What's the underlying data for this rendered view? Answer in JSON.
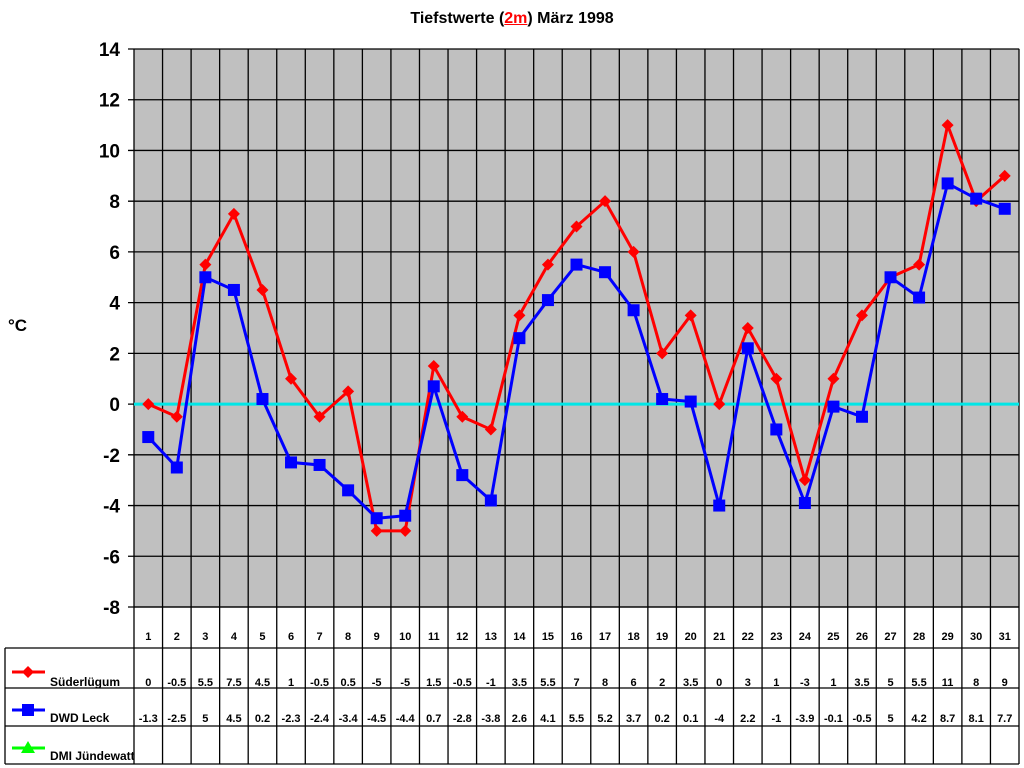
{
  "chart_data": {
    "type": "line",
    "title_parts": [
      "Tiefstwerte (",
      "2m",
      ") März 1998"
    ],
    "title": "Tiefstwerte (2m) März 1998",
    "xlabel": "",
    "ylabel": "°C",
    "ylim": [
      -8,
      14
    ],
    "yticks": [
      14,
      12,
      10,
      8,
      6,
      4,
      2,
      0,
      -2,
      -4,
      -6,
      -8
    ],
    "grid": true,
    "legend_position": "table-left",
    "zero_line_color": "#00e6e6",
    "plot_background": "#c0c0c0",
    "categories": [
      "1",
      "2",
      "3",
      "4",
      "5",
      "6",
      "7",
      "8",
      "9",
      "10",
      "11",
      "12",
      "13",
      "14",
      "15",
      "16",
      "17",
      "18",
      "19",
      "20",
      "21",
      "22",
      "23",
      "24",
      "25",
      "26",
      "27",
      "28",
      "29",
      "30",
      "31"
    ],
    "series": [
      {
        "name": "Süderlügum",
        "color": "#ff0000",
        "marker": "diamond",
        "values": [
          0,
          -0.5,
          5.5,
          7.5,
          4.5,
          1,
          -0.5,
          0.5,
          -5,
          -5,
          1.5,
          -0.5,
          -1,
          3.5,
          5.5,
          7,
          8,
          6,
          2,
          3.5,
          0,
          3,
          1,
          -3,
          1,
          3.5,
          5,
          5.5,
          11,
          8,
          9
        ]
      },
      {
        "name": "DWD Leck",
        "color": "#0000ff",
        "marker": "square",
        "values": [
          -1.3,
          -2.5,
          5,
          4.5,
          0.2,
          -2.3,
          -2.4,
          -3.4,
          -4.5,
          -4.4,
          0.7,
          -2.8,
          -3.8,
          2.6,
          4.1,
          5.5,
          5.2,
          3.7,
          0.2,
          0.1,
          -4,
          2.2,
          -1,
          -3.9,
          -0.1,
          -0.5,
          5,
          4.2,
          8.7,
          8.1,
          7.7
        ]
      },
      {
        "name": "DMI Jündewatt",
        "color": "#00ff00",
        "marker": "triangle",
        "values": [
          null,
          null,
          null,
          null,
          null,
          null,
          null,
          null,
          null,
          null,
          null,
          null,
          null,
          null,
          null,
          null,
          null,
          null,
          null,
          null,
          null,
          null,
          null,
          null,
          null,
          null,
          null,
          null,
          null,
          null,
          null
        ]
      }
    ]
  }
}
